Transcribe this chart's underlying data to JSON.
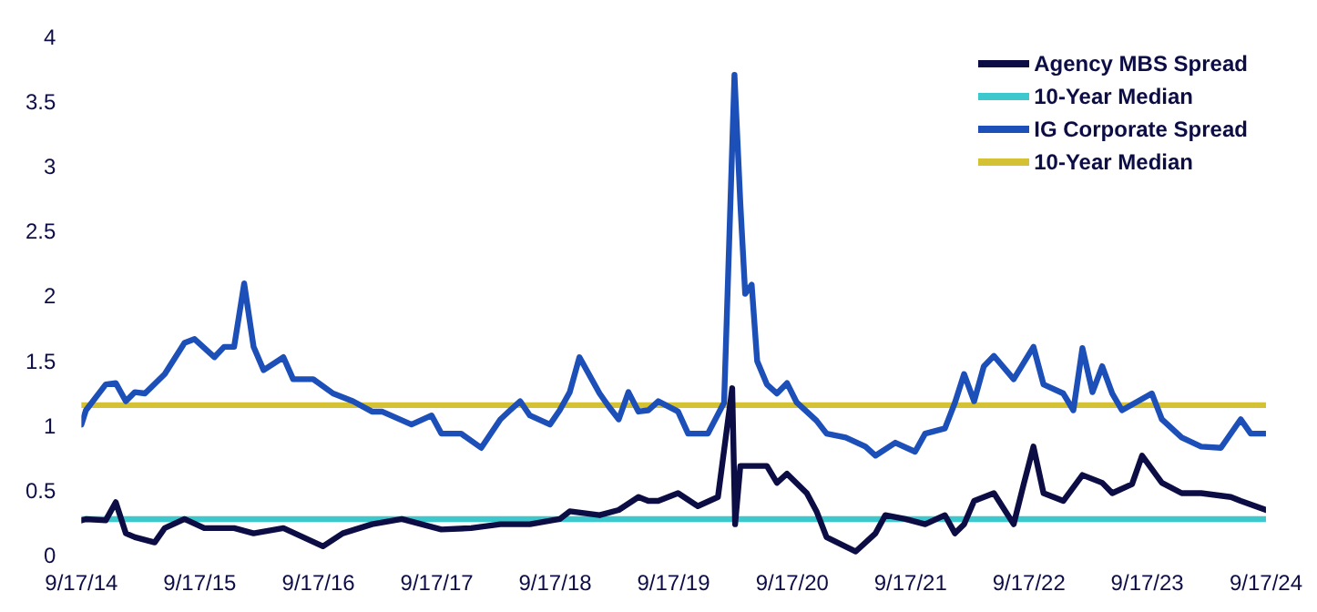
{
  "chart_data": {
    "type": "line",
    "xlim": [
      "2014-09-17",
      "2024-09-17"
    ],
    "xticks": [
      {
        "value": "2014-09-17",
        "label": "9/17/14"
      },
      {
        "value": "2015-09-17",
        "label": "9/17/15"
      },
      {
        "value": "2016-09-17",
        "label": "9/17/16"
      },
      {
        "value": "2017-09-17",
        "label": "9/17/17"
      },
      {
        "value": "2018-09-17",
        "label": "9/17/18"
      },
      {
        "value": "2019-09-17",
        "label": "9/17/19"
      },
      {
        "value": "2020-09-17",
        "label": "9/17/20"
      },
      {
        "value": "2021-09-17",
        "label": "9/17/21"
      },
      {
        "value": "2022-09-17",
        "label": "9/17/22"
      },
      {
        "value": "2023-09-17",
        "label": "9/17/23"
      },
      {
        "value": "2024-09-17",
        "label": "9/17/24"
      }
    ],
    "ylim": [
      0,
      4
    ],
    "yticks": [
      0,
      0.5,
      1,
      1.5,
      2,
      2.5,
      3,
      3.5,
      4
    ],
    "grid": false,
    "legend": "top right",
    "marker": "none",
    "line_style": "solid",
    "series": [
      {
        "name": "Agency MBS Spread",
        "color": "#0d0d45",
        "x": [
          "2014-09-17",
          "2014-10",
          "2014-12",
          "2015-01",
          "2015-02",
          "2015-03",
          "2015-05",
          "2015-06",
          "2015-08",
          "2015-10",
          "2016-01",
          "2016-03",
          "2016-06",
          "2016-08",
          "2016-10",
          "2016-12",
          "2017-03",
          "2017-06",
          "2017-10",
          "2018-01",
          "2018-04",
          "2018-07",
          "2018-10",
          "2018-11",
          "2019-02",
          "2019-04",
          "2019-06",
          "2019-07",
          "2019-08",
          "2019-10",
          "2019-12",
          "2020-02",
          "2020-03-16",
          "2020-03-25",
          "2020-04-10",
          "2020-05",
          "2020-07",
          "2020-08",
          "2020-09",
          "2020-11",
          "2020-12",
          "2021-01",
          "2021-04",
          "2021-06",
          "2021-07",
          "2021-09",
          "2021-11",
          "2022-01",
          "2022-02",
          "2022-03",
          "2022-04",
          "2022-06",
          "2022-08",
          "2022-09",
          "2022-10",
          "2022-11",
          "2023-01",
          "2023-03",
          "2023-05",
          "2023-06",
          "2023-08",
          "2023-09",
          "2023-11",
          "2024-01",
          "2024-03",
          "2024-06",
          "2024-07",
          "2024-09-17"
        ],
        "values": [
          0.28,
          0.29,
          0.28,
          0.42,
          0.18,
          0.15,
          0.11,
          0.22,
          0.29,
          0.22,
          0.22,
          0.18,
          0.22,
          0.15,
          0.08,
          0.18,
          0.25,
          0.29,
          0.21,
          0.22,
          0.25,
          0.25,
          0.29,
          0.35,
          0.32,
          0.36,
          0.46,
          0.43,
          0.43,
          0.49,
          0.39,
          0.46,
          1.3,
          0.25,
          0.7,
          0.7,
          0.7,
          0.57,
          0.64,
          0.49,
          0.35,
          0.15,
          0.04,
          0.18,
          0.32,
          0.29,
          0.25,
          0.32,
          0.18,
          0.25,
          0.43,
          0.49,
          0.25,
          0.56,
          0.85,
          0.49,
          0.43,
          0.63,
          0.57,
          0.49,
          0.56,
          0.78,
          0.57,
          0.49,
          0.49,
          0.46,
          0.43,
          0.36
        ]
      },
      {
        "name": "10-Year Median",
        "color": "#3cc8cc",
        "x": [
          "2014-09-17",
          "2024-09-17"
        ],
        "values": [
          0.29,
          0.29
        ]
      },
      {
        "name": "IG Corporate Spread",
        "color": "#1d4fb8",
        "x": [
          "2014-09-17",
          "2014-10",
          "2014-12",
          "2015-01",
          "2015-02",
          "2015-03",
          "2015-04",
          "2015-06",
          "2015-08",
          "2015-09",
          "2015-11",
          "2015-12",
          "2016-01",
          "2016-02",
          "2016-03",
          "2016-04",
          "2016-06",
          "2016-07",
          "2016-09",
          "2016-11",
          "2017-01",
          "2017-03",
          "2017-04",
          "2017-07",
          "2017-09",
          "2017-10",
          "2017-12",
          "2018-02",
          "2018-04",
          "2018-05",
          "2018-06",
          "2018-07",
          "2018-09",
          "2018-10",
          "2018-11",
          "2018-12",
          "2019-02",
          "2019-03",
          "2019-04",
          "2019-05",
          "2019-06",
          "2019-07",
          "2019-08",
          "2019-10",
          "2019-11",
          "2020-01",
          "2020-02-20",
          "2020-03-23",
          "2020-04-10",
          "2020-04-25",
          "2020-05-15",
          "2020-06",
          "2020-07",
          "2020-08",
          "2020-09",
          "2020-10",
          "2020-12",
          "2021-01",
          "2021-03",
          "2021-05",
          "2021-06",
          "2021-08",
          "2021-10",
          "2021-11",
          "2022-01",
          "2022-02",
          "2022-03",
          "2022-04",
          "2022-05",
          "2022-06",
          "2022-08",
          "2022-10",
          "2022-11",
          "2023-01",
          "2023-02",
          "2023-03",
          "2023-04",
          "2023-05",
          "2023-06",
          "2023-07",
          "2023-10",
          "2023-11",
          "2024-01",
          "2024-03",
          "2024-05",
          "2024-07",
          "2024-08",
          "2024-09-17"
        ],
        "values": [
          1.02,
          1.13,
          1.33,
          1.34,
          1.2,
          1.27,
          1.26,
          1.41,
          1.65,
          1.68,
          1.54,
          1.62,
          1.62,
          2.11,
          1.62,
          1.44,
          1.54,
          1.37,
          1.37,
          1.26,
          1.2,
          1.12,
          1.12,
          1.02,
          1.09,
          0.95,
          0.95,
          0.84,
          1.06,
          1.13,
          1.2,
          1.09,
          1.02,
          1.13,
          1.27,
          1.54,
          1.26,
          1.16,
          1.06,
          1.27,
          1.12,
          1.13,
          1.2,
          1.12,
          0.95,
          0.95,
          1.19,
          3.72,
          2.73,
          2.03,
          2.1,
          1.51,
          1.33,
          1.26,
          1.34,
          1.19,
          1.05,
          0.95,
          0.92,
          0.85,
          0.78,
          0.88,
          0.81,
          0.95,
          0.99,
          1.19,
          1.41,
          1.2,
          1.47,
          1.55,
          1.37,
          1.62,
          1.33,
          1.26,
          1.13,
          1.61,
          1.27,
          1.47,
          1.26,
          1.13,
          1.26,
          1.06,
          0.92,
          0.85,
          0.84,
          1.06,
          0.95,
          0.95
        ]
      },
      {
        "name": "10-Year Median",
        "color": "#d4c234",
        "x": [
          "2014-09-17",
          "2024-09-17"
        ],
        "values": [
          1.17,
          1.17
        ]
      }
    ]
  }
}
